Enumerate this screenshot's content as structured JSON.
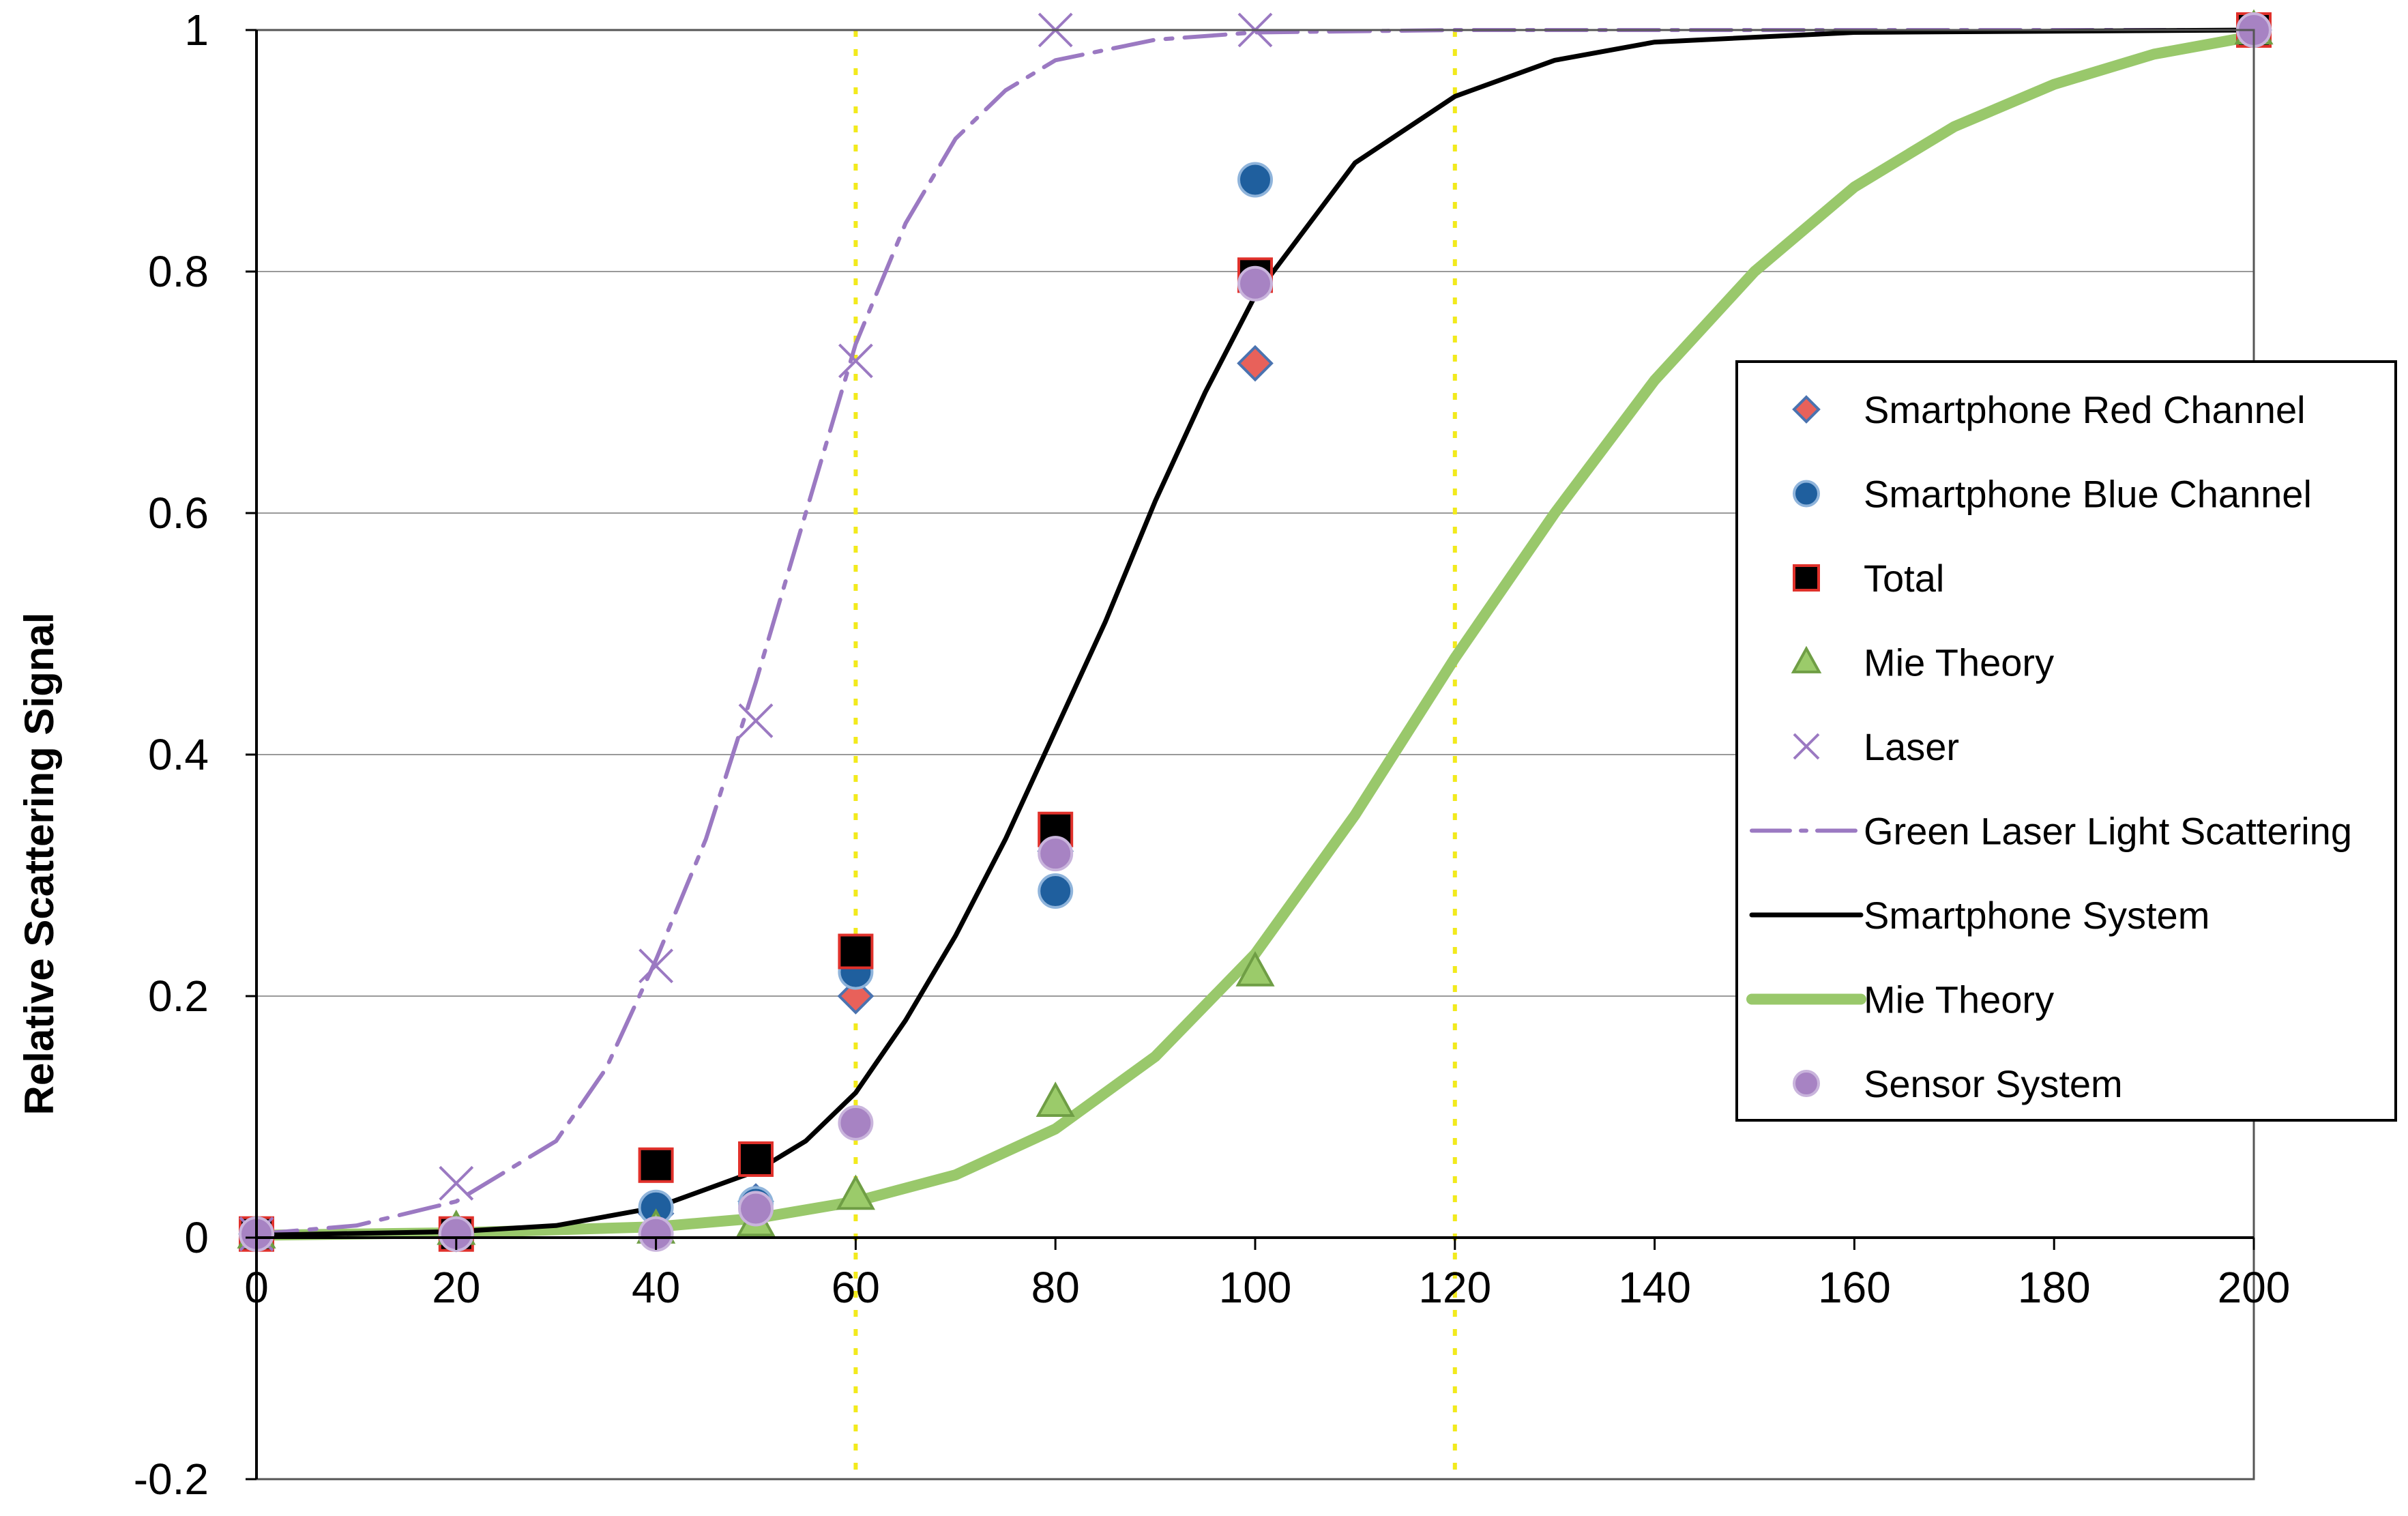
{
  "chart_data": {
    "type": "scatter",
    "title": "",
    "xlabel": "",
    "ylabel": "Relative Scattering Signal",
    "xlim": [
      0,
      200
    ],
    "ylim": [
      -0.2,
      1
    ],
    "x_ticks": [
      "0",
      "20",
      "40",
      "60",
      "80",
      "100",
      "120",
      "140",
      "160",
      "180",
      "200"
    ],
    "y_ticks": [
      "-0.2",
      "0",
      "0.2",
      "0.4",
      "0.6",
      "0.8",
      "1"
    ],
    "grid": "horizontal",
    "reference_lines_x": [
      60,
      120
    ],
    "legend_position": "right",
    "series": [
      {
        "name": "Smartphone Red Channel",
        "kind": "points",
        "marker": "diamond",
        "color": "#e8615a",
        "stroke": "#4a73b0",
        "x": [
          0,
          20,
          40,
          50,
          60,
          80,
          100,
          200
        ],
        "y": [
          0.003,
          0.003,
          0.02,
          0.03,
          0.2,
          0.32,
          0.724,
          1.0
        ]
      },
      {
        "name": "Smartphone Blue Channel",
        "kind": "points",
        "marker": "circle",
        "color": "#1f5f9e",
        "stroke": "#8fb4db",
        "x": [
          0,
          20,
          40,
          50,
          60,
          80,
          100,
          200
        ],
        "y": [
          0.003,
          0.003,
          0.025,
          0.028,
          0.22,
          0.287,
          0.876,
          1.0
        ]
      },
      {
        "name": "Total",
        "kind": "points",
        "marker": "square",
        "color": "#000000",
        "stroke": "#e0312b",
        "x": [
          0,
          20,
          40,
          50,
          60,
          80,
          100,
          200
        ],
        "y": [
          0.003,
          0.003,
          0.06,
          0.065,
          0.237,
          0.338,
          0.797,
          1.0
        ]
      },
      {
        "name": "Mie Theory",
        "kind": "points",
        "marker": "triangle",
        "color": "#9bcb6a",
        "stroke": "#6f9e45",
        "x": [
          0,
          20,
          40,
          50,
          60,
          80,
          100,
          200
        ],
        "y": [
          0.003,
          0.006,
          0.007,
          0.013,
          0.035,
          0.112,
          0.22,
          1.0
        ]
      },
      {
        "name": "Laser",
        "kind": "points",
        "marker": "x",
        "color": "#9b79c2",
        "stroke": "#9b79c2",
        "x": [
          0,
          20,
          40,
          50,
          60,
          80,
          100
        ],
        "y": [
          0.003,
          0.045,
          0.225,
          0.428,
          0.726,
          1.0,
          1.0
        ]
      },
      {
        "name": "Green Laser Light Scattering",
        "kind": "line",
        "dash": "dashdot",
        "color": "#9b79c2",
        "width": 6,
        "x": [
          0,
          10,
          20,
          30,
          35,
          40,
          45,
          50,
          55,
          60,
          65,
          70,
          75,
          80,
          90,
          100,
          120,
          150,
          200
        ],
        "y": [
          0.003,
          0.01,
          0.03,
          0.08,
          0.14,
          0.23,
          0.33,
          0.46,
          0.6,
          0.74,
          0.84,
          0.91,
          0.95,
          0.975,
          0.992,
          0.998,
          1.0,
          1.0,
          1.0
        ]
      },
      {
        "name": "Smartphone System",
        "kind": "line",
        "dash": "solid",
        "color": "#000000",
        "width": 7,
        "x": [
          0,
          20,
          30,
          40,
          50,
          55,
          60,
          65,
          70,
          75,
          80,
          85,
          90,
          95,
          100,
          110,
          120,
          130,
          140,
          160,
          200
        ],
        "y": [
          0.002,
          0.005,
          0.01,
          0.025,
          0.055,
          0.08,
          0.12,
          0.18,
          0.25,
          0.33,
          0.42,
          0.51,
          0.61,
          0.7,
          0.78,
          0.89,
          0.945,
          0.975,
          0.99,
          0.998,
          1.0
        ]
      },
      {
        "name": "Mie Theory",
        "kind": "line",
        "dash": "solid",
        "color": "#99c86b",
        "width": 16,
        "x": [
          0,
          20,
          40,
          50,
          60,
          70,
          80,
          90,
          100,
          110,
          120,
          130,
          140,
          150,
          160,
          170,
          180,
          190,
          200
        ],
        "y": [
          0.002,
          0.004,
          0.009,
          0.016,
          0.03,
          0.052,
          0.09,
          0.15,
          0.235,
          0.35,
          0.48,
          0.6,
          0.71,
          0.8,
          0.87,
          0.92,
          0.955,
          0.98,
          0.995
        ]
      },
      {
        "name": "Sensor System",
        "kind": "points",
        "marker": "circle",
        "color": "#a783c3",
        "stroke": "#c9b4dc",
        "x": [
          0,
          20,
          40,
          50,
          60,
          80,
          100,
          200
        ],
        "y": [
          0.003,
          0.003,
          0.003,
          0.024,
          0.095,
          0.318,
          0.79,
          1.0
        ]
      }
    ]
  }
}
